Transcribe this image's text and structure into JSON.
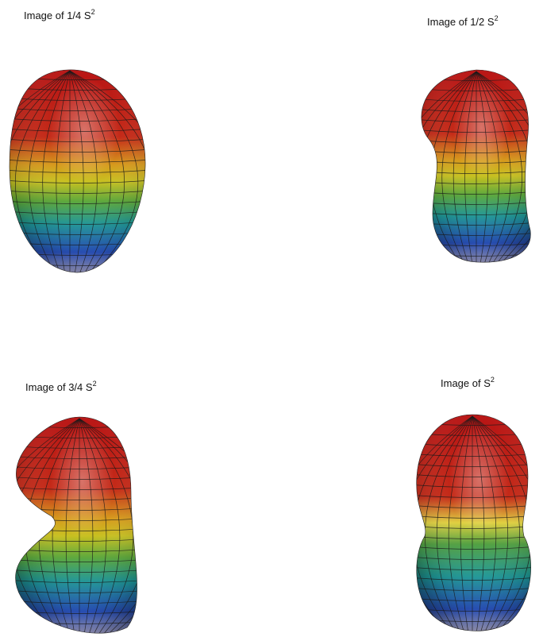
{
  "panels": [
    {
      "title": "Image of 1/4 S",
      "superscript": "2"
    },
    {
      "title": "Image of 1/2 S",
      "superscript": "2"
    },
    {
      "title": "Image of 3/4 S",
      "superscript": "2"
    },
    {
      "title": "Image of S",
      "superscript": "2"
    }
  ]
}
